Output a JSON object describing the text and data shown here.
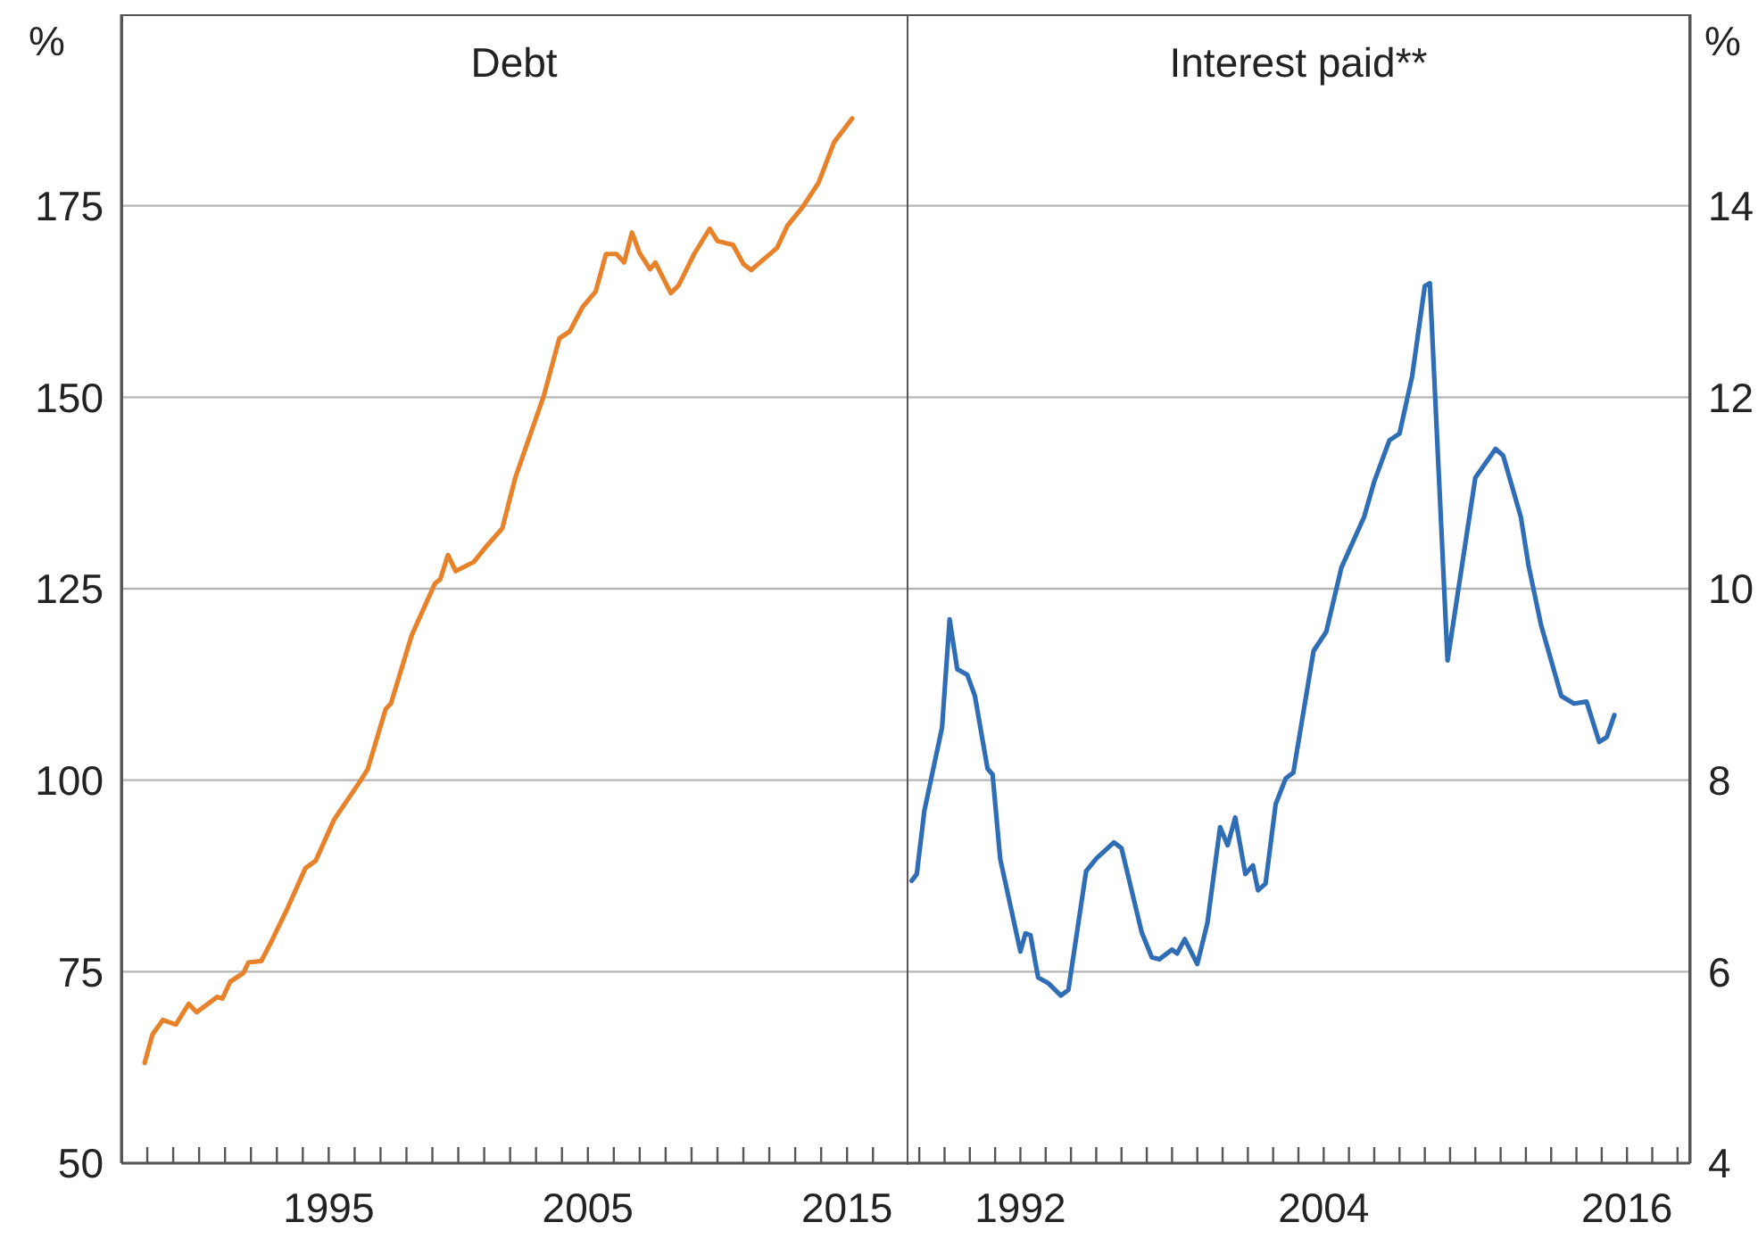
{
  "chart_data": [
    {
      "type": "line",
      "title": "Debt",
      "ylabel": "%",
      "grid": "y",
      "xlim": [
        1987,
        2017.3
      ],
      "xticks": [
        {
          "value": 1988,
          "label": null
        },
        {
          "value": 1989,
          "label": null
        },
        {
          "value": 1990,
          "label": null
        },
        {
          "value": 1991,
          "label": null
        },
        {
          "value": 1992,
          "label": null
        },
        {
          "value": 1993,
          "label": null
        },
        {
          "value": 1994,
          "label": null
        },
        1995,
        {
          "value": 1996,
          "label": null
        },
        {
          "value": 1997,
          "label": null
        },
        {
          "value": 1998,
          "label": null
        },
        {
          "value": 1999,
          "label": null
        },
        {
          "value": 2000,
          "label": null
        },
        {
          "value": 2001,
          "label": null
        },
        {
          "value": 2002,
          "label": null
        },
        {
          "value": 2003,
          "label": null
        },
        {
          "value": 2004,
          "label": null
        },
        2005,
        {
          "value": 2006,
          "label": null
        },
        {
          "value": 2007,
          "label": null
        },
        {
          "value": 2008,
          "label": null
        },
        {
          "value": 2009,
          "label": null
        },
        {
          "value": 2010,
          "label": null
        },
        {
          "value": 2011,
          "label": null
        },
        {
          "value": 2012,
          "label": null
        },
        {
          "value": 2013,
          "label": null
        },
        {
          "value": 2014,
          "label": null
        },
        2015,
        {
          "value": 2016,
          "label": null
        }
      ],
      "ylim": [
        50,
        200
      ],
      "yticks": [
        50,
        75,
        100,
        125,
        150,
        175
      ],
      "series": [
        {
          "color": "#e8822a",
          "x": [
            1987.9,
            1988.2,
            1988.6,
            1989.1,
            1989.6,
            1989.9,
            1990.7,
            1990.9,
            1991.2,
            1991.7,
            1991.9,
            1992.4,
            1992.8,
            1993.4,
            1994.1,
            1994.5,
            1995.2,
            1996.2,
            1996.5,
            1997.2,
            1997.4,
            1998.2,
            1999.1,
            1999.3,
            1999.6,
            1999.9,
            2000.6,
            2001.1,
            2001.7,
            2002.2,
            2003.3,
            2003.9,
            2004.3,
            2004.8,
            2005.3,
            2005.7,
            2006.1,
            2006.4,
            2006.7,
            2007.0,
            2007.4,
            2007.6,
            2008.2,
            2008.5,
            2009.1,
            2009.7,
            2010.0,
            2010.6,
            2011.0,
            2011.3,
            2012.3,
            2012.7,
            2013.3,
            2013.9,
            2014.5,
            2015.2
          ],
          "values": [
            63.1,
            66.8,
            68.7,
            68.1,
            70.8,
            69.7,
            71.7,
            71.5,
            73.7,
            74.8,
            76.2,
            76.4,
            79.0,
            83.2,
            88.5,
            89.5,
            94.8,
            99.8,
            101.4,
            109.3,
            110.0,
            118.9,
            125.7,
            126.2,
            129.4,
            127.3,
            128.5,
            130.6,
            132.9,
            139.5,
            150.2,
            157.7,
            158.6,
            161.8,
            163.8,
            168.7,
            168.7,
            167.6,
            171.5,
            168.8,
            166.7,
            167.6,
            163.6,
            164.6,
            168.7,
            172.0,
            170.4,
            169.9,
            167.4,
            166.6,
            169.5,
            172.4,
            174.9,
            178.0,
            183.3,
            186.4
          ]
        }
      ]
    },
    {
      "type": "line",
      "title": "Interest paid**",
      "y2label": "%",
      "grid": "y",
      "xlim": [
        1987.5,
        2018.5
      ],
      "xticks": [
        {
          "value": 1988,
          "label": null
        },
        {
          "value": 1989,
          "label": null
        },
        {
          "value": 1990,
          "label": null
        },
        {
          "value": 1991,
          "label": null
        },
        1992,
        {
          "value": 1993,
          "label": null
        },
        {
          "value": 1994,
          "label": null
        },
        {
          "value": 1995,
          "label": null
        },
        {
          "value": 1996,
          "label": null
        },
        {
          "value": 1997,
          "label": null
        },
        {
          "value": 1998,
          "label": null
        },
        {
          "value": 1999,
          "label": null
        },
        {
          "value": 2000,
          "label": null
        },
        {
          "value": 2001,
          "label": null
        },
        {
          "value": 2002,
          "label": null
        },
        {
          "value": 2003,
          "label": null
        },
        2004,
        {
          "value": 2005,
          "label": null
        },
        {
          "value": 2006,
          "label": null
        },
        {
          "value": 2007,
          "label": null
        },
        {
          "value": 2008,
          "label": null
        },
        {
          "value": 2009,
          "label": null
        },
        {
          "value": 2010,
          "label": null
        },
        {
          "value": 2011,
          "label": null
        },
        {
          "value": 2012,
          "label": null
        },
        {
          "value": 2013,
          "label": null
        },
        {
          "value": 2014,
          "label": null
        },
        {
          "value": 2015,
          "label": null
        },
        2016,
        {
          "value": 2017,
          "label": null
        },
        {
          "value": 2018,
          "label": null
        }
      ],
      "y2lim": [
        4,
        16
      ],
      "y2ticks": [
        4,
        6,
        8,
        10,
        12,
        14
      ],
      "series": [
        {
          "axis": "y2",
          "color": "#2f6eb5",
          "x": [
            1987.7,
            1987.9,
            1988.2,
            1988.9,
            1989.2,
            1989.5,
            1989.9,
            1990.2,
            1990.7,
            1990.9,
            1991.2,
            1992.0,
            1992.2,
            1992.4,
            1992.7,
            1993.1,
            1993.6,
            1993.9,
            1994.6,
            1995.0,
            1995.7,
            1996.0,
            1996.8,
            1997.2,
            1997.5,
            1998.0,
            1998.2,
            1998.5,
            1999.0,
            1999.4,
            1999.9,
            2000.2,
            2000.5,
            2000.9,
            2001.2,
            2001.4,
            2001.7,
            2002.1,
            2002.5,
            2002.8,
            2003.6,
            2004.1,
            2004.7,
            2005.6,
            2006.0,
            2006.6,
            2007.0,
            2007.5,
            2008.0,
            2008.2,
            2008.9,
            2010.0,
            2010.8,
            2011.1,
            2011.8,
            2012.1,
            2012.6,
            2013.4,
            2013.9,
            2014.4,
            2014.9,
            2015.2,
            2015.5
          ],
          "values": [
            6.95,
            7.02,
            7.68,
            8.55,
            9.68,
            9.16,
            9.1,
            8.88,
            8.12,
            8.06,
            7.18,
            6.21,
            6.4,
            6.38,
            5.94,
            5.88,
            5.75,
            5.81,
            7.05,
            7.18,
            7.35,
            7.29,
            6.41,
            6.15,
            6.13,
            6.23,
            6.19,
            6.34,
            6.08,
            6.51,
            7.51,
            7.32,
            7.61,
            7.02,
            7.11,
            6.85,
            6.92,
            7.75,
            8.02,
            8.08,
            9.35,
            9.55,
            10.22,
            10.75,
            11.12,
            11.55,
            11.62,
            12.22,
            13.16,
            13.19,
            9.25,
            11.16,
            11.46,
            11.39,
            10.75,
            10.25,
            9.62,
            8.88,
            8.8,
            8.82,
            8.4,
            8.45,
            8.68
          ]
        }
      ]
    }
  ]
}
